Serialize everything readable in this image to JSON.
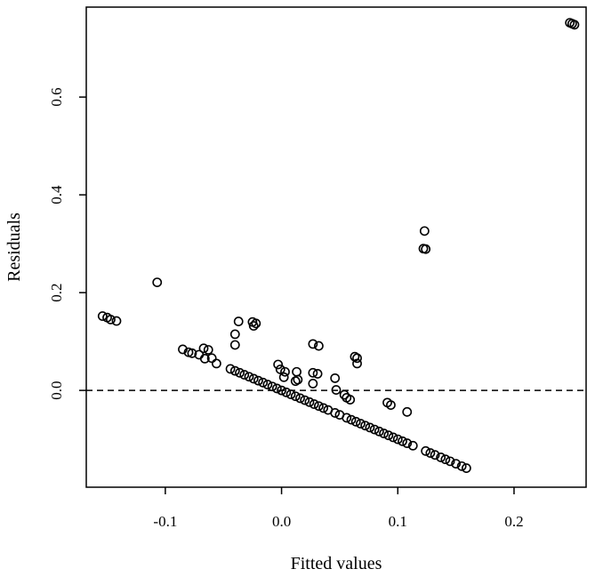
{
  "chart_data": {
    "type": "scatter",
    "title": "",
    "xlabel": "Fitted values",
    "ylabel": "Residuals",
    "xlim": [
      -0.168,
      0.262
    ],
    "ylim": [
      -0.198,
      0.784
    ],
    "x_ticks": [
      -0.1,
      0.0,
      0.1,
      0.2
    ],
    "x_tick_labels": [
      "-0.1",
      "0.0",
      "0.1",
      "0.2"
    ],
    "y_ticks": [
      0.0,
      0.2,
      0.4,
      0.6
    ],
    "y_tick_labels": [
      "0.0",
      "0.2",
      "0.4",
      "0.6"
    ],
    "reference_line": {
      "y": 0,
      "style": "dashed"
    },
    "grid": false,
    "legend": "none",
    "marker": "open-circle",
    "color": "#000000",
    "points": [
      {
        "x": 0.248,
        "y": 0.752
      },
      {
        "x": 0.25,
        "y": 0.75
      },
      {
        "x": 0.252,
        "y": 0.748
      },
      {
        "x": 0.123,
        "y": 0.326
      },
      {
        "x": 0.122,
        "y": 0.29
      },
      {
        "x": 0.124,
        "y": 0.289
      },
      {
        "x": -0.107,
        "y": 0.221
      },
      {
        "x": -0.154,
        "y": 0.152
      },
      {
        "x": -0.15,
        "y": 0.149
      },
      {
        "x": -0.147,
        "y": 0.145
      },
      {
        "x": -0.142,
        "y": 0.142
      },
      {
        "x": -0.037,
        "y": 0.141
      },
      {
        "x": -0.025,
        "y": 0.14
      },
      {
        "x": -0.022,
        "y": 0.137
      },
      {
        "x": -0.024,
        "y": 0.132
      },
      {
        "x": -0.04,
        "y": 0.115
      },
      {
        "x": -0.04,
        "y": 0.093
      },
      {
        "x": 0.027,
        "y": 0.095
      },
      {
        "x": 0.032,
        "y": 0.091
      },
      {
        "x": -0.085,
        "y": 0.084
      },
      {
        "x": -0.08,
        "y": 0.078
      },
      {
        "x": -0.077,
        "y": 0.076
      },
      {
        "x": -0.071,
        "y": 0.073
      },
      {
        "x": -0.067,
        "y": 0.086
      },
      {
        "x": -0.063,
        "y": 0.083
      },
      {
        "x": -0.066,
        "y": 0.065
      },
      {
        "x": -0.06,
        "y": 0.066
      },
      {
        "x": -0.056,
        "y": 0.055
      },
      {
        "x": 0.063,
        "y": 0.069
      },
      {
        "x": 0.065,
        "y": 0.066
      },
      {
        "x": 0.065,
        "y": 0.055
      },
      {
        "x": -0.003,
        "y": 0.053
      },
      {
        "x": -0.001,
        "y": 0.043
      },
      {
        "x": 0.003,
        "y": 0.038
      },
      {
        "x": 0.002,
        "y": 0.027
      },
      {
        "x": 0.012,
        "y": 0.019
      },
      {
        "x": 0.013,
        "y": 0.038
      },
      {
        "x": 0.014,
        "y": 0.022
      },
      {
        "x": 0.027,
        "y": 0.036
      },
      {
        "x": 0.031,
        "y": 0.034
      },
      {
        "x": 0.027,
        "y": 0.014
      },
      {
        "x": 0.046,
        "y": 0.025
      },
      {
        "x": 0.047,
        "y": 0.001
      },
      {
        "x": 0.054,
        "y": -0.009
      },
      {
        "x": 0.056,
        "y": -0.015
      },
      {
        "x": 0.059,
        "y": -0.019
      },
      {
        "x": 0.091,
        "y": -0.025
      },
      {
        "x": 0.094,
        "y": -0.03
      },
      {
        "x": 0.108,
        "y": -0.044
      },
      {
        "x": -0.044,
        "y": 0.044
      },
      {
        "x": -0.04,
        "y": 0.04
      },
      {
        "x": -0.036,
        "y": 0.036
      },
      {
        "x": -0.032,
        "y": 0.032
      },
      {
        "x": -0.028,
        "y": 0.028
      },
      {
        "x": -0.024,
        "y": 0.024
      },
      {
        "x": -0.02,
        "y": 0.02
      },
      {
        "x": -0.016,
        "y": 0.016
      },
      {
        "x": -0.012,
        "y": 0.012
      },
      {
        "x": -0.008,
        "y": 0.008
      },
      {
        "x": -0.004,
        "y": 0.004
      },
      {
        "x": 0.0,
        "y": 0.0
      },
      {
        "x": 0.004,
        "y": -0.004
      },
      {
        "x": 0.008,
        "y": -0.008
      },
      {
        "x": 0.012,
        "y": -0.012
      },
      {
        "x": 0.016,
        "y": -0.016
      },
      {
        "x": 0.02,
        "y": -0.02
      },
      {
        "x": 0.024,
        "y": -0.024
      },
      {
        "x": 0.028,
        "y": -0.028
      },
      {
        "x": 0.032,
        "y": -0.032
      },
      {
        "x": 0.036,
        "y": -0.036
      },
      {
        "x": 0.04,
        "y": -0.04
      },
      {
        "x": 0.046,
        "y": -0.046
      },
      {
        "x": 0.05,
        "y": -0.05
      },
      {
        "x": 0.056,
        "y": -0.056
      },
      {
        "x": 0.06,
        "y": -0.06
      },
      {
        "x": 0.064,
        "y": -0.064
      },
      {
        "x": 0.068,
        "y": -0.068
      },
      {
        "x": 0.072,
        "y": -0.072
      },
      {
        "x": 0.076,
        "y": -0.076
      },
      {
        "x": 0.08,
        "y": -0.08
      },
      {
        "x": 0.084,
        "y": -0.084
      },
      {
        "x": 0.088,
        "y": -0.088
      },
      {
        "x": 0.092,
        "y": -0.092
      },
      {
        "x": 0.096,
        "y": -0.096
      },
      {
        "x": 0.1,
        "y": -0.1
      },
      {
        "x": 0.104,
        "y": -0.104
      },
      {
        "x": 0.108,
        "y": -0.108
      },
      {
        "x": 0.113,
        "y": -0.113
      },
      {
        "x": 0.124,
        "y": -0.124
      },
      {
        "x": 0.128,
        "y": -0.128
      },
      {
        "x": 0.132,
        "y": -0.132
      },
      {
        "x": 0.137,
        "y": -0.137
      },
      {
        "x": 0.141,
        "y": -0.141
      },
      {
        "x": 0.145,
        "y": -0.145
      },
      {
        "x": 0.15,
        "y": -0.15
      },
      {
        "x": 0.155,
        "y": -0.155
      },
      {
        "x": 0.159,
        "y": -0.159
      }
    ]
  }
}
